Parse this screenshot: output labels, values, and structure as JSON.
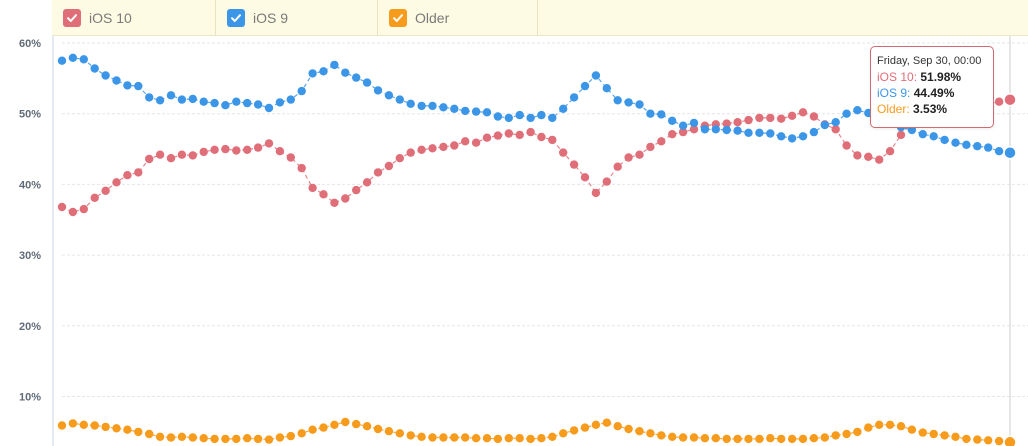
{
  "legend": {
    "items": [
      {
        "label": "iOS 10",
        "color": "#e06e78"
      },
      {
        "label": "iOS 9",
        "color": "#3c96e8"
      },
      {
        "label": "Older",
        "color": "#f79b1c"
      }
    ]
  },
  "tooltip": {
    "title": "Friday, Sep 30, 00:00",
    "rows": [
      {
        "name": "iOS 10",
        "value": "51.98%",
        "color": "#e06e78"
      },
      {
        "name": "iOS 9",
        "value": "44.49%",
        "color": "#3c96e8"
      },
      {
        "name": "Older",
        "value": "3.53%",
        "color": "#f79b1c"
      }
    ]
  },
  "chart_data": {
    "type": "line",
    "title": "",
    "xlabel": "",
    "ylabel": "",
    "ylim": [
      3,
      60
    ],
    "yticks": [
      {
        "value": 10,
        "label": "10%"
      },
      {
        "value": 20,
        "label": "20%"
      },
      {
        "value": 30,
        "label": "30%"
      },
      {
        "value": 40,
        "label": "40%"
      },
      {
        "value": 50,
        "label": "50%"
      },
      {
        "value": 60,
        "label": "60%"
      }
    ],
    "grid": true,
    "legend_position": "top",
    "colors": {
      "grid": "#e6e6e6",
      "axis": "#c9d6e3",
      "tick_label": "#606b77",
      "crosshair": "#cccccc"
    },
    "highlight_index": 87,
    "series": [
      {
        "name": "iOS 10",
        "color": "#e06e78",
        "values": [
          36.8,
          36.1,
          36.5,
          38.1,
          39.1,
          40.3,
          41.3,
          41.7,
          43.6,
          44.2,
          43.7,
          44.2,
          44.1,
          44.6,
          44.9,
          45.0,
          44.8,
          44.9,
          45.2,
          45.8,
          44.7,
          43.8,
          42.3,
          39.5,
          38.6,
          37.4,
          38.0,
          39.2,
          40.3,
          41.7,
          42.6,
          43.7,
          44.5,
          44.9,
          45.1,
          45.3,
          45.5,
          46.1,
          45.9,
          46.6,
          46.9,
          47.2,
          47.0,
          47.4,
          46.7,
          46.3,
          44.5,
          42.8,
          41.0,
          38.8,
          40.4,
          42.5,
          43.8,
          44.2,
          45.3,
          46.1,
          47.1,
          47.4,
          47.8,
          48.3,
          48.5,
          48.6,
          48.8,
          49.1,
          49.4,
          49.4,
          49.3,
          49.7,
          50.2,
          49.6,
          48.5,
          47.8,
          45.5,
          44.1,
          43.9,
          43.5,
          44.7,
          47.0,
          48.8,
          49.4,
          49.8,
          50.2,
          50.5,
          50.8,
          51.0,
          51.4,
          51.7,
          51.98
        ]
      },
      {
        "name": "iOS 9",
        "color": "#3c96e8",
        "values": [
          57.5,
          57.9,
          57.7,
          56.4,
          55.4,
          54.7,
          54.0,
          53.9,
          52.3,
          51.9,
          52.6,
          52.0,
          52.1,
          51.7,
          51.5,
          51.2,
          51.7,
          51.5,
          51.3,
          50.8,
          51.6,
          52.0,
          53.2,
          55.7,
          56.0,
          56.9,
          55.8,
          55.1,
          54.4,
          53.3,
          52.6,
          52.0,
          51.4,
          51.1,
          51.1,
          50.9,
          50.7,
          50.4,
          50.3,
          50.2,
          49.6,
          49.4,
          49.8,
          49.4,
          49.8,
          49.4,
          50.7,
          52.3,
          53.9,
          55.4,
          53.6,
          51.9,
          51.6,
          51.3,
          50.0,
          49.9,
          49.0,
          48.3,
          48.7,
          47.8,
          47.8,
          47.7,
          47.6,
          47.3,
          47.3,
          47.2,
          46.8,
          46.5,
          46.8,
          47.4,
          48.4,
          48.8,
          50.0,
          50.5,
          50.1,
          49.8,
          49.2,
          48.1,
          47.7,
          47.1,
          46.8,
          46.3,
          45.9,
          45.6,
          45.4,
          45.2,
          44.7,
          44.49
        ]
      },
      {
        "name": "Older",
        "color": "#f79b1c",
        "values": [
          5.9,
          6.2,
          6.0,
          5.9,
          5.7,
          5.5,
          5.3,
          5.0,
          4.7,
          4.3,
          4.2,
          4.3,
          4.2,
          4.1,
          4.0,
          4.0,
          4.0,
          4.1,
          4.0,
          3.9,
          4.2,
          4.4,
          4.8,
          5.3,
          5.6,
          6.0,
          6.4,
          6.1,
          5.8,
          5.4,
          5.1,
          4.8,
          4.5,
          4.3,
          4.2,
          4.2,
          4.2,
          4.2,
          4.1,
          4.1,
          4.0,
          4.1,
          4.1,
          4.0,
          4.1,
          4.3,
          4.8,
          5.2,
          5.6,
          6.0,
          6.3,
          5.8,
          5.4,
          5.1,
          4.8,
          4.5,
          4.3,
          4.2,
          4.2,
          4.1,
          4.1,
          4.0,
          4.0,
          4.0,
          4.0,
          4.1,
          4.0,
          4.0,
          4.0,
          4.1,
          4.2,
          4.5,
          4.7,
          5.0,
          5.6,
          6.0,
          6.0,
          5.8,
          5.3,
          4.9,
          4.7,
          4.5,
          4.3,
          4.0,
          3.9,
          3.8,
          3.7,
          3.53
        ]
      }
    ]
  }
}
